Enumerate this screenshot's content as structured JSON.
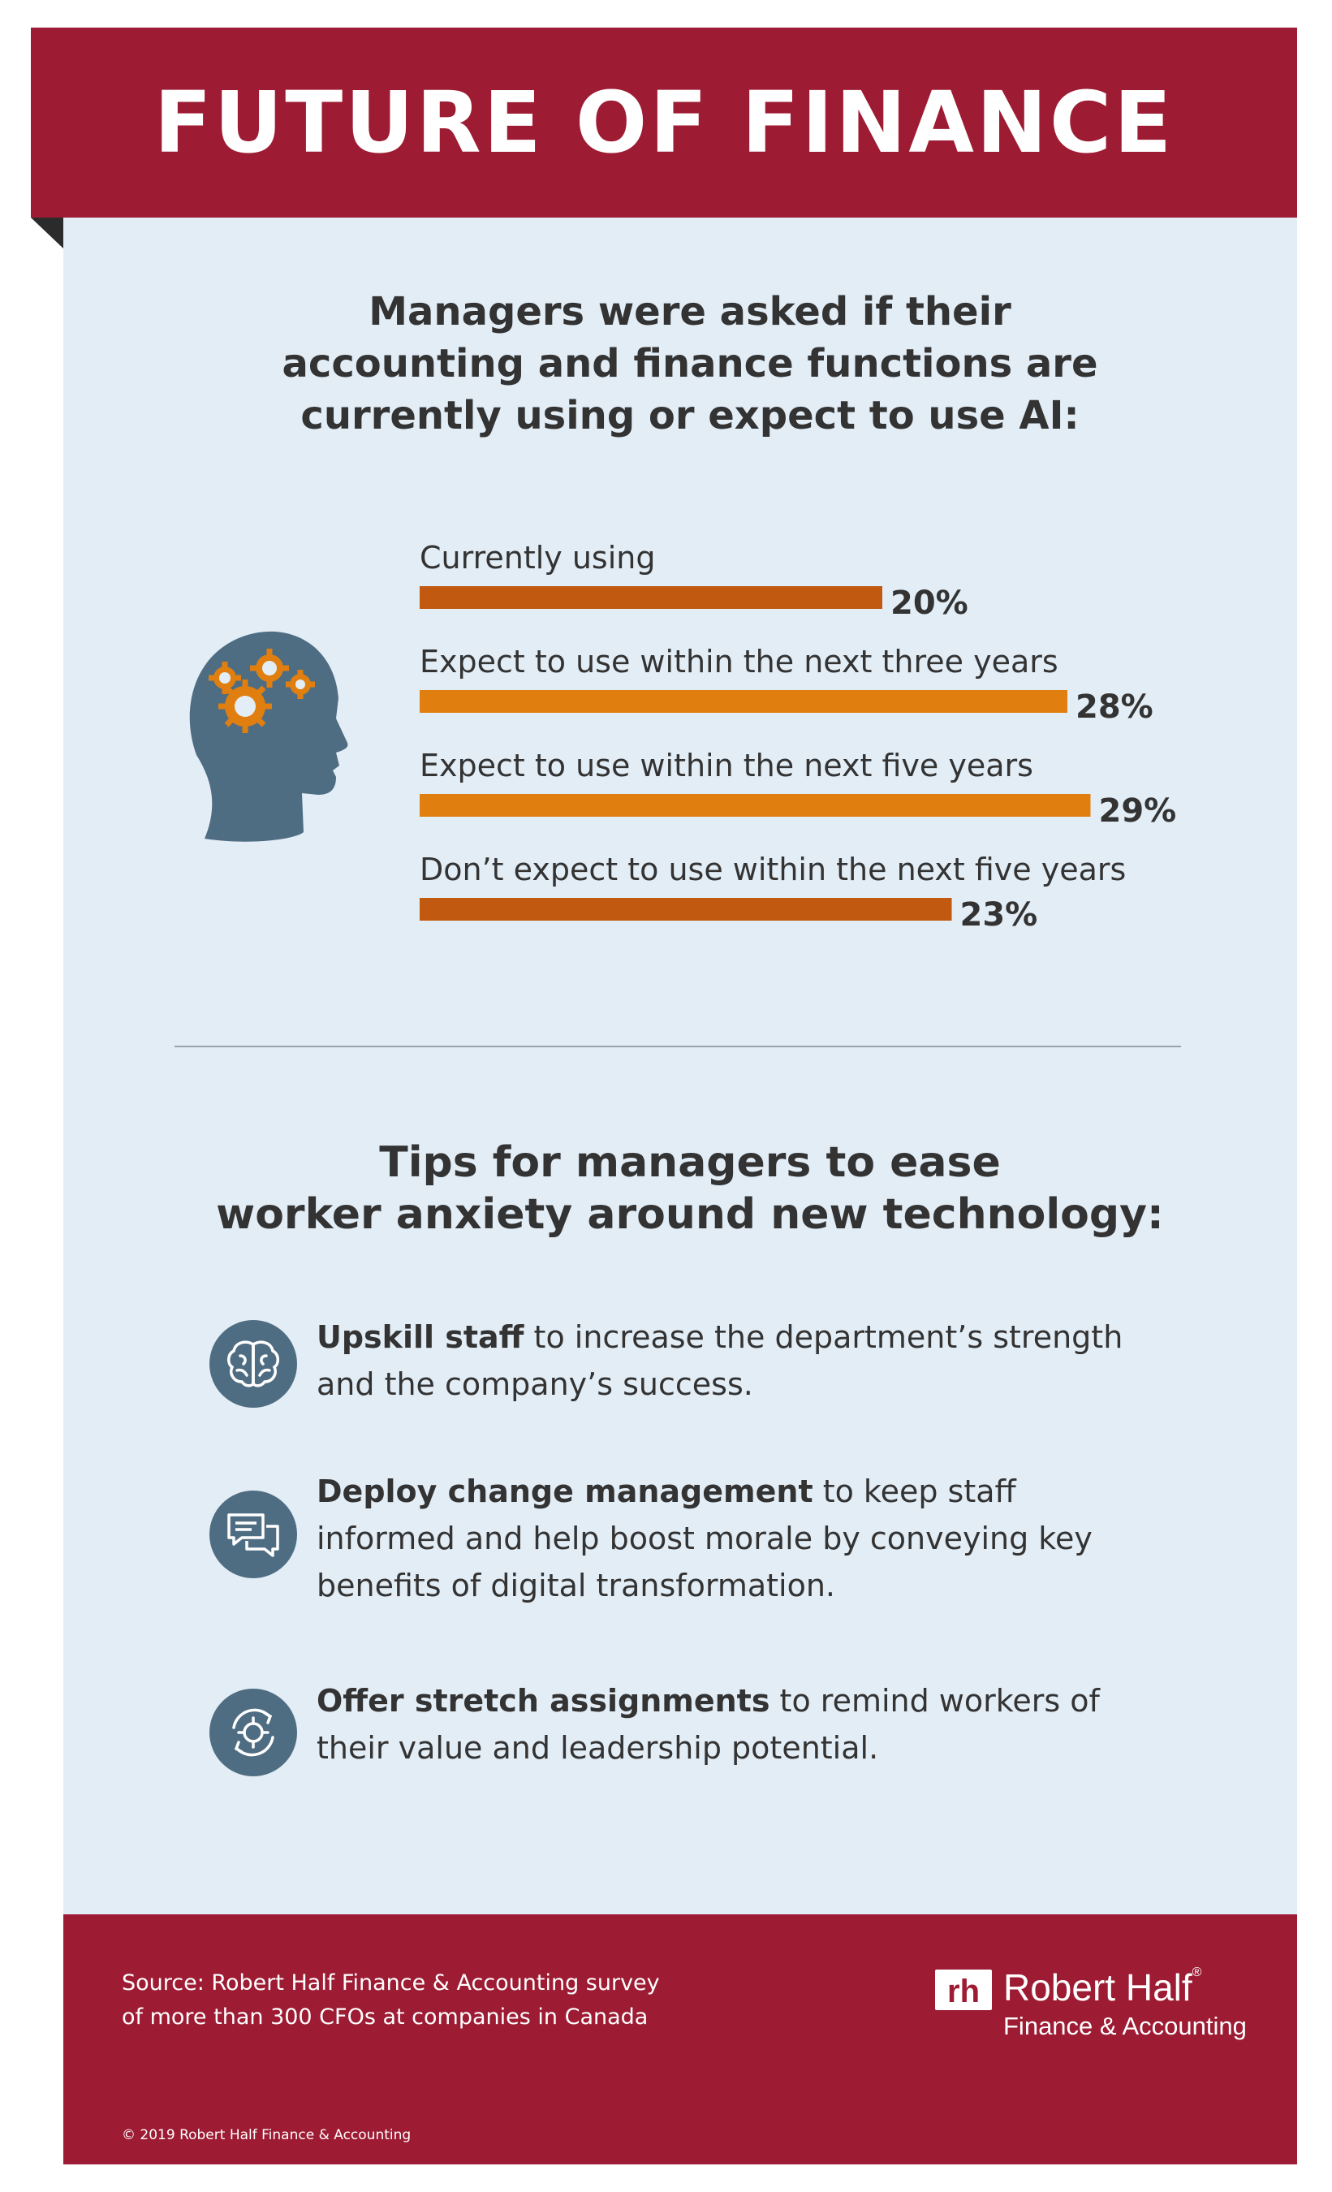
{
  "header": {
    "title": "FUTURE OF FINANCE"
  },
  "question": {
    "lines": [
      "Managers were asked if their",
      "accounting and finance functions are",
      "currently using or expect to use AI:"
    ]
  },
  "chart_data": {
    "type": "bar",
    "orientation": "horizontal",
    "categories": [
      "Currently using",
      "Expect to use within the next three years",
      "Expect to use within the next five years",
      "Don’t expect to use within the next five years"
    ],
    "values": [
      20,
      28,
      29,
      23
    ],
    "value_labels": [
      "20%",
      "28%",
      "29%",
      "23%"
    ],
    "unit": "%",
    "colors": [
      "#c15a10",
      "#e07f10",
      "#e07f10",
      "#c15a10"
    ],
    "title": "",
    "xlabel": "",
    "ylabel": "",
    "grid": false
  },
  "tips": {
    "title_lines": [
      "Tips for managers to ease",
      "worker anxiety around new technology:"
    ],
    "items": [
      {
        "icon": "brain-icon",
        "bold": "Upskill staff",
        "text": " to increase the department’s strength and the company’s success."
      },
      {
        "icon": "chat-bubbles-icon",
        "bold": "Deploy change management",
        "text": " to keep staff informed and help boost morale by conveying key benefits of digital transformation."
      },
      {
        "icon": "gear-cycle-icon",
        "bold": "Offer stretch assignments",
        "text": " to remind workers of their value and leadership potential."
      }
    ]
  },
  "footer": {
    "source_lines": [
      "Source: Robert Half Finance & Accounting survey",
      "of more than 300 CFOs at companies in Canada"
    ],
    "logo_name": "Robert Half",
    "logo_mark": "rh",
    "registered": "®",
    "logo_tagline": "Finance & Accounting",
    "copyright": "© 2019 Robert Half Finance & Accounting"
  },
  "colors": {
    "brand": "#9d1b33",
    "panel": "#e3edf6",
    "icon": "#4f6d82",
    "gear": "#e07f10"
  }
}
